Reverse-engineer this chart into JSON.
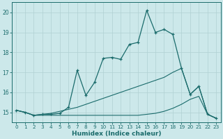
{
  "xlabel": "Humidex (Indice chaleur)",
  "xlim": [
    -0.5,
    23.5
  ],
  "ylim": [
    14.5,
    20.5
  ],
  "yticks": [
    15,
    16,
    17,
    18,
    19,
    20
  ],
  "xticks": [
    0,
    1,
    2,
    3,
    4,
    5,
    6,
    7,
    8,
    9,
    10,
    11,
    12,
    13,
    14,
    15,
    16,
    17,
    18,
    19,
    20,
    21,
    22,
    23
  ],
  "bg_color": "#cce8ea",
  "line_color": "#1a6b6b",
  "grid_color": "#b0d0d2",
  "curves": [
    {
      "x": [
        0,
        1,
        2,
        3,
        4,
        5,
        6,
        7,
        8,
        9,
        10,
        11,
        12,
        13,
        14,
        15,
        16,
        17,
        18,
        19,
        20,
        21,
        22,
        23
      ],
      "y": [
        15.1,
        15.0,
        14.85,
        14.9,
        14.9,
        14.95,
        15.25,
        17.1,
        15.85,
        16.5,
        17.7,
        17.75,
        17.65,
        18.4,
        18.5,
        20.1,
        19.0,
        19.15,
        18.9,
        17.2,
        15.9,
        16.3,
        14.9,
        14.7
      ],
      "marker": "+"
    },
    {
      "x": [
        0,
        1,
        2,
        3,
        4,
        5,
        6,
        7,
        8,
        9,
        10,
        11,
        12,
        13,
        14,
        15,
        16,
        17,
        18,
        19,
        20,
        21,
        22,
        23
      ],
      "y": [
        15.1,
        15.0,
        14.85,
        14.9,
        14.95,
        15.05,
        15.15,
        15.25,
        15.4,
        15.55,
        15.7,
        15.85,
        16.0,
        16.15,
        16.3,
        16.45,
        16.6,
        16.75,
        17.0,
        17.2,
        15.9,
        16.3,
        14.9,
        14.7
      ],
      "marker": null
    },
    {
      "x": [
        0,
        1,
        2,
        3,
        4,
        5,
        6,
        7,
        8,
        9,
        10,
        11,
        12,
        13,
        14,
        15,
        16,
        17,
        18,
        19,
        20,
        21,
        22,
        23
      ],
      "y": [
        15.1,
        15.0,
        14.85,
        14.85,
        14.85,
        14.85,
        14.85,
        14.85,
        14.85,
        14.85,
        14.85,
        14.85,
        14.85,
        14.85,
        14.85,
        14.9,
        14.95,
        15.05,
        15.2,
        15.4,
        15.65,
        15.8,
        14.9,
        14.7
      ],
      "marker": null
    }
  ]
}
